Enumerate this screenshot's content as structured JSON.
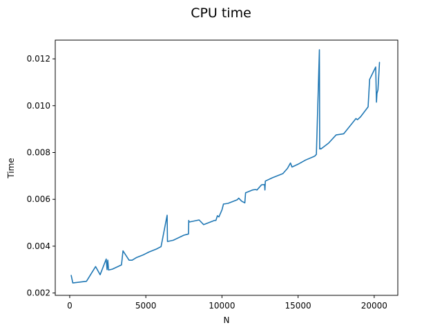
{
  "chart_data": {
    "type": "line",
    "title": "CPU time",
    "xlabel": "N",
    "ylabel": "Time",
    "xlim": [
      -950,
      21550
    ],
    "ylim": [
      0.0019,
      0.0128
    ],
    "xticks": [
      0,
      5000,
      10000,
      15000,
      20000
    ],
    "xtick_labels": [
      "0",
      "5000",
      "10000",
      "15000",
      "20000"
    ],
    "yticks": [
      0.002,
      0.004,
      0.006,
      0.008,
      0.01,
      0.012
    ],
    "ytick_labels": [
      "0.002",
      "0.004",
      "0.006",
      "0.008",
      "0.010",
      "0.012"
    ],
    "grid": false,
    "series_color": "#1f77b4",
    "series": [
      {
        "x": [
          100,
          200,
          1100,
          1700,
          2000,
          2400,
          2450,
          2500,
          2550,
          2800,
          3400,
          3500,
          3900,
          4100,
          4400,
          4800,
          5200,
          5700,
          6000,
          6400,
          6420,
          6800,
          7500,
          7800,
          7820,
          7850,
          8500,
          8800,
          9500,
          9600,
          9700,
          9800,
          10000,
          10100,
          10400,
          11000,
          11100,
          11300,
          11500,
          11550,
          12000,
          12200,
          12300,
          12600,
          12800,
          12820,
          12850,
          13300,
          14000,
          14300,
          14500,
          14600,
          15000,
          15500,
          16000,
          16100,
          16200,
          16400,
          16420,
          16450,
          16500,
          17000,
          17500,
          18000,
          18800,
          18900,
          19100,
          19600,
          19700,
          20100,
          20150,
          20180,
          20250,
          20350
        ],
        "y": [
          0.00275,
          0.00243,
          0.0025,
          0.00313,
          0.00278,
          0.00345,
          0.003,
          0.0034,
          0.00298,
          0.00302,
          0.0032,
          0.0038,
          0.0034,
          0.0034,
          0.00352,
          0.00362,
          0.00375,
          0.00388,
          0.00398,
          0.00532,
          0.0042,
          0.00425,
          0.00447,
          0.00452,
          0.0051,
          0.00503,
          0.00512,
          0.00492,
          0.0051,
          0.0051,
          0.0053,
          0.00525,
          0.00555,
          0.0058,
          0.00583,
          0.00598,
          0.00605,
          0.00592,
          0.00585,
          0.00628,
          0.0064,
          0.00642,
          0.0064,
          0.00662,
          0.00663,
          0.0064,
          0.00678,
          0.00692,
          0.0071,
          0.00732,
          0.00755,
          0.00738,
          0.0075,
          0.00768,
          0.00782,
          0.00785,
          0.00792,
          0.01239,
          0.00815,
          0.00818,
          0.00815,
          0.0084,
          0.00875,
          0.0088,
          0.00945,
          0.0094,
          0.00952,
          0.00995,
          0.01112,
          0.01165,
          0.01015,
          0.01052,
          0.01068,
          0.01185
        ]
      }
    ]
  }
}
